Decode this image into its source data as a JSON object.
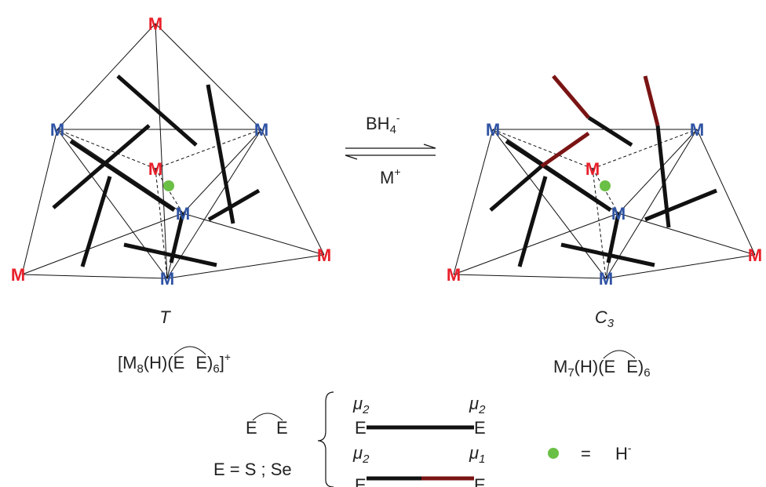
{
  "colors": {
    "metal_red": "#e8202a",
    "metal_blue": "#2f53a3",
    "hydride_green": "#6abf45",
    "ligand_black": "#111111",
    "ligand_red": "#7a1414"
  },
  "atom_label": "M",
  "arrow": {
    "top_reagent": "BH",
    "top_sub": "4",
    "top_sup": "-",
    "bottom_reagent": "M",
    "bottom_sup": "+"
  },
  "left_cluster": {
    "symmetry": "T",
    "formula": {
      "open": "[M",
      "sub1": "8",
      "mid": "(H)(E",
      "e2": "E)",
      "sub2": "6",
      "close": "]",
      "charge": "+"
    }
  },
  "right_cluster": {
    "symmetry": "C",
    "symmetry_sub": "3",
    "formula": {
      "open": "M",
      "sub1": "7",
      "mid": "(H)(E",
      "e2": "E)",
      "sub2": "6"
    }
  },
  "legend": {
    "ligand_symbol": {
      "left": "E",
      "right": "E"
    },
    "element_def": "E = S ; Se",
    "bridging_mode": {
      "left_label": "μ",
      "left_sub": "2",
      "right_label": "μ",
      "right_sub": "2",
      "atom": "E"
    },
    "terminal_mode": {
      "left_label": "μ",
      "left_sub": "2",
      "right_label": "μ",
      "right_sub": "1",
      "atom": "E"
    },
    "hydride": {
      "equals": "=",
      "symbol": "H",
      "charge": "-"
    }
  }
}
